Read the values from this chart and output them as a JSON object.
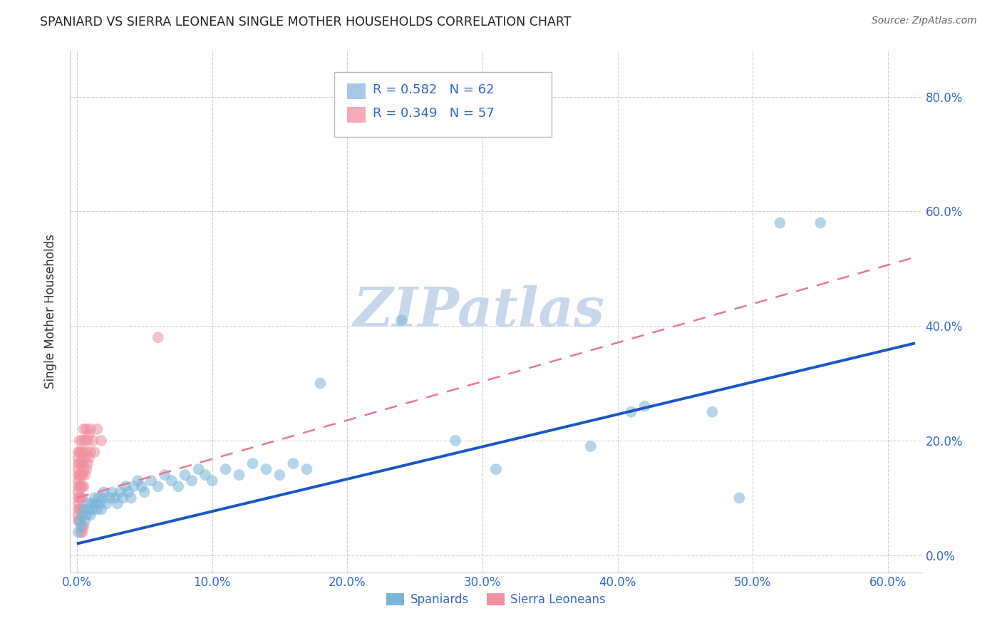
{
  "title": "SPANIARD VS SIERRA LEONEAN SINGLE MOTHER HOUSEHOLDS CORRELATION CHART",
  "source": "Source: ZipAtlas.com",
  "ylabel": "Single Mother Households",
  "xtick_vals": [
    0.0,
    0.1,
    0.2,
    0.3,
    0.4,
    0.5,
    0.6
  ],
  "xtick_labels": [
    "0.0%",
    "10.0%",
    "20.0%",
    "30.0%",
    "40.0%",
    "50.0%",
    "60.0%"
  ],
  "ytick_vals": [
    0.0,
    0.2,
    0.4,
    0.6,
    0.8
  ],
  "ytick_labels": [
    "0.0%",
    "20.0%",
    "40.0%",
    "60.0%",
    "80.0%"
  ],
  "xlim": [
    -0.005,
    0.625
  ],
  "ylim": [
    -0.03,
    0.88
  ],
  "spaniard_color": "#7ab4d8",
  "sierra_leone_color": "#f090a0",
  "trend_blue_color": "#1a56c4",
  "trend_pink_color": "#e87890",
  "watermark": "ZIPatlas",
  "watermark_color": "#c8d8ea",
  "legend_blue_patch": "#a8c8e8",
  "legend_pink_patch": "#f4a8b8",
  "legend_text_color": "#3366cc",
  "tick_label_color": "#3366cc",
  "title_color": "#222222",
  "source_color": "#666666",
  "grid_color": "#cccccc",
  "spine_color": "#cccccc",
  "spaniard_N": 62,
  "sierra_leone_N": 57,
  "spaniard_R": 0.582,
  "sierra_leone_R": 0.349,
  "blue_trend_x0": 0.0,
  "blue_trend_y0": 0.02,
  "blue_trend_x1": 0.62,
  "blue_trend_y1": 0.37,
  "pink_trend_x0": 0.0,
  "pink_trend_y0": 0.1,
  "pink_trend_x1": 0.62,
  "pink_trend_y1": 0.52,
  "spaniard_data": [
    [
      0.001,
      0.04
    ],
    [
      0.002,
      0.06
    ],
    [
      0.003,
      0.05
    ],
    [
      0.004,
      0.07
    ],
    [
      0.005,
      0.08
    ],
    [
      0.006,
      0.06
    ],
    [
      0.007,
      0.07
    ],
    [
      0.008,
      0.09
    ],
    [
      0.009,
      0.08
    ],
    [
      0.01,
      0.07
    ],
    [
      0.011,
      0.09
    ],
    [
      0.012,
      0.08
    ],
    [
      0.013,
      0.1
    ],
    [
      0.014,
      0.09
    ],
    [
      0.015,
      0.08
    ],
    [
      0.016,
      0.1
    ],
    [
      0.017,
      0.09
    ],
    [
      0.018,
      0.08
    ],
    [
      0.019,
      0.1
    ],
    [
      0.02,
      0.11
    ],
    [
      0.022,
      0.09
    ],
    [
      0.024,
      0.1
    ],
    [
      0.026,
      0.11
    ],
    [
      0.028,
      0.1
    ],
    [
      0.03,
      0.09
    ],
    [
      0.032,
      0.11
    ],
    [
      0.034,
      0.1
    ],
    [
      0.036,
      0.12
    ],
    [
      0.038,
      0.11
    ],
    [
      0.04,
      0.1
    ],
    [
      0.042,
      0.12
    ],
    [
      0.045,
      0.13
    ],
    [
      0.048,
      0.12
    ],
    [
      0.05,
      0.11
    ],
    [
      0.055,
      0.13
    ],
    [
      0.06,
      0.12
    ],
    [
      0.065,
      0.14
    ],
    [
      0.07,
      0.13
    ],
    [
      0.075,
      0.12
    ],
    [
      0.08,
      0.14
    ],
    [
      0.085,
      0.13
    ],
    [
      0.09,
      0.15
    ],
    [
      0.095,
      0.14
    ],
    [
      0.1,
      0.13
    ],
    [
      0.11,
      0.15
    ],
    [
      0.12,
      0.14
    ],
    [
      0.13,
      0.16
    ],
    [
      0.14,
      0.15
    ],
    [
      0.15,
      0.14
    ],
    [
      0.16,
      0.16
    ],
    [
      0.17,
      0.15
    ],
    [
      0.18,
      0.3
    ],
    [
      0.24,
      0.41
    ],
    [
      0.28,
      0.2
    ],
    [
      0.31,
      0.15
    ],
    [
      0.38,
      0.19
    ],
    [
      0.41,
      0.25
    ],
    [
      0.42,
      0.26
    ],
    [
      0.47,
      0.25
    ],
    [
      0.49,
      0.1
    ],
    [
      0.52,
      0.58
    ],
    [
      0.55,
      0.58
    ]
  ],
  "sierra_leone_data": [
    [
      0.001,
      0.06
    ],
    [
      0.001,
      0.08
    ],
    [
      0.001,
      0.1
    ],
    [
      0.001,
      0.12
    ],
    [
      0.001,
      0.14
    ],
    [
      0.001,
      0.16
    ],
    [
      0.001,
      0.18
    ],
    [
      0.001,
      0.07
    ],
    [
      0.001,
      0.09
    ],
    [
      0.001,
      0.11
    ],
    [
      0.001,
      0.13
    ],
    [
      0.001,
      0.15
    ],
    [
      0.001,
      0.17
    ],
    [
      0.002,
      0.06
    ],
    [
      0.002,
      0.08
    ],
    [
      0.002,
      0.1
    ],
    [
      0.002,
      0.12
    ],
    [
      0.002,
      0.14
    ],
    [
      0.002,
      0.16
    ],
    [
      0.002,
      0.18
    ],
    [
      0.002,
      0.2
    ],
    [
      0.003,
      0.08
    ],
    [
      0.003,
      0.1
    ],
    [
      0.003,
      0.12
    ],
    [
      0.003,
      0.14
    ],
    [
      0.003,
      0.16
    ],
    [
      0.003,
      0.18
    ],
    [
      0.004,
      0.1
    ],
    [
      0.004,
      0.12
    ],
    [
      0.004,
      0.14
    ],
    [
      0.004,
      0.16
    ],
    [
      0.004,
      0.2
    ],
    [
      0.005,
      0.12
    ],
    [
      0.005,
      0.15
    ],
    [
      0.005,
      0.18
    ],
    [
      0.005,
      0.22
    ],
    [
      0.006,
      0.14
    ],
    [
      0.006,
      0.17
    ],
    [
      0.006,
      0.2
    ],
    [
      0.007,
      0.15
    ],
    [
      0.007,
      0.18
    ],
    [
      0.007,
      0.22
    ],
    [
      0.008,
      0.16
    ],
    [
      0.008,
      0.2
    ],
    [
      0.009,
      0.17
    ],
    [
      0.009,
      0.21
    ],
    [
      0.01,
      0.18
    ],
    [
      0.01,
      0.22
    ],
    [
      0.012,
      0.2
    ],
    [
      0.013,
      0.18
    ],
    [
      0.015,
      0.22
    ],
    [
      0.018,
      0.2
    ],
    [
      0.003,
      0.04
    ],
    [
      0.004,
      0.05
    ],
    [
      0.004,
      0.04
    ],
    [
      0.005,
      0.05
    ],
    [
      0.06,
      0.38
    ]
  ]
}
